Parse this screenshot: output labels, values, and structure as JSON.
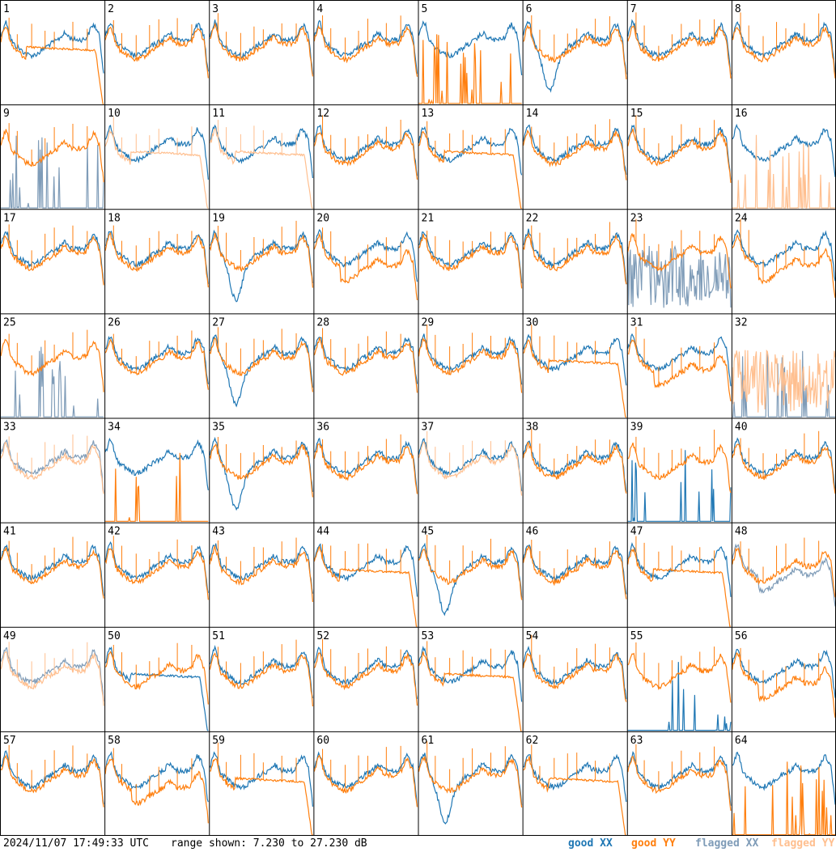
{
  "footer": {
    "timestamp": "2024/11/07 17:49:33 UTC",
    "range_text": "range shown: 7.230 to 27.230 dB"
  },
  "legend": {
    "good_xx": "good XX",
    "good_yy": "good YY",
    "flagged_xx": "flagged XX",
    "flagged_yy": "flagged YY"
  },
  "colors": {
    "good_xx": "#1f77b4",
    "good_yy": "#ff7f0e",
    "flagged_xx": "#7f9cb8",
    "flagged_yy": "#ffbf8f",
    "grid": "#000000"
  },
  "chart_data": {
    "type": "line",
    "layout": "8x8 small multiples of spectra",
    "ylim": [
      7.23,
      27.23
    ],
    "y_unit": "dB",
    "panels": [
      {
        "id": "1",
        "xx": "good",
        "yy": "good",
        "yy_shape": "drop-right"
      },
      {
        "id": "2",
        "xx": "good",
        "yy": "good"
      },
      {
        "id": "3",
        "xx": "good",
        "yy": "good"
      },
      {
        "id": "4",
        "xx": "good",
        "yy": "good"
      },
      {
        "id": "5",
        "xx": "good",
        "yy": "good",
        "yy_shape": "spikes-low"
      },
      {
        "id": "6",
        "xx": "good",
        "yy": "good",
        "xx_shape": "dip"
      },
      {
        "id": "7",
        "xx": "good",
        "yy": "good"
      },
      {
        "id": "8",
        "xx": "good",
        "yy": "good"
      },
      {
        "id": "9",
        "xx": "flagged",
        "yy": "good",
        "xx_shape": "spikes-low"
      },
      {
        "id": "10",
        "xx": "good",
        "yy": "flagged",
        "yy_shape": "drop-right"
      },
      {
        "id": "11",
        "xx": "good",
        "yy": "flagged",
        "yy_shape": "drop-right"
      },
      {
        "id": "12",
        "xx": "good",
        "yy": "good"
      },
      {
        "id": "13",
        "xx": "good",
        "yy": "good",
        "yy_shape": "drop-right"
      },
      {
        "id": "14",
        "xx": "good",
        "yy": "good"
      },
      {
        "id": "15",
        "xx": "good",
        "yy": "good"
      },
      {
        "id": "16",
        "xx": "good",
        "yy": "flagged",
        "yy_shape": "spikes-low"
      },
      {
        "id": "17",
        "xx": "good",
        "yy": "good"
      },
      {
        "id": "18",
        "xx": "good",
        "yy": "good"
      },
      {
        "id": "19",
        "xx": "good",
        "yy": "good",
        "xx_shape": "dip"
      },
      {
        "id": "20",
        "xx": "good",
        "yy": "good",
        "yy_shape": "low"
      },
      {
        "id": "21",
        "xx": "good",
        "yy": "good"
      },
      {
        "id": "22",
        "xx": "good",
        "yy": "good"
      },
      {
        "id": "23",
        "xx": "flagged",
        "yy": "good",
        "xx_shape": "noisy"
      },
      {
        "id": "24",
        "xx": "good",
        "yy": "good",
        "yy_shape": "low"
      },
      {
        "id": "25",
        "xx": "flagged",
        "yy": "good",
        "xx_shape": "spikes-low"
      },
      {
        "id": "26",
        "xx": "good",
        "yy": "good"
      },
      {
        "id": "27",
        "xx": "good",
        "yy": "good",
        "xx_shape": "dip"
      },
      {
        "id": "28",
        "xx": "good",
        "yy": "good"
      },
      {
        "id": "29",
        "xx": "good",
        "yy": "good"
      },
      {
        "id": "30",
        "xx": "good",
        "yy": "good",
        "yy_shape": "drop-right"
      },
      {
        "id": "31",
        "xx": "good",
        "yy": "good",
        "yy_shape": "low"
      },
      {
        "id": "32",
        "xx": "flagged",
        "yy": "flagged",
        "xx_shape": "spikes-low",
        "yy_shape": "noisy"
      },
      {
        "id": "33",
        "xx": "flagged",
        "yy": "flagged"
      },
      {
        "id": "34",
        "xx": "good",
        "yy": "good",
        "yy_shape": "spikes-low"
      },
      {
        "id": "35",
        "xx": "good",
        "yy": "good",
        "xx_shape": "dip"
      },
      {
        "id": "36",
        "xx": "good",
        "yy": "good"
      },
      {
        "id": "37",
        "xx": "good",
        "yy": "flagged"
      },
      {
        "id": "38",
        "xx": "good",
        "yy": "good"
      },
      {
        "id": "39",
        "xx": "good",
        "yy": "good",
        "xx_shape": "spikes-low"
      },
      {
        "id": "40",
        "xx": "good",
        "yy": "good"
      },
      {
        "id": "41",
        "xx": "good",
        "yy": "good"
      },
      {
        "id": "42",
        "xx": "good",
        "yy": "good"
      },
      {
        "id": "43",
        "xx": "good",
        "yy": "good"
      },
      {
        "id": "44",
        "xx": "good",
        "yy": "good",
        "yy_shape": "drop-right"
      },
      {
        "id": "45",
        "xx": "good",
        "yy": "good",
        "xx_shape": "dip"
      },
      {
        "id": "46",
        "xx": "good",
        "yy": "good"
      },
      {
        "id": "47",
        "xx": "good",
        "yy": "good",
        "yy_shape": "drop-right"
      },
      {
        "id": "48",
        "xx": "flagged",
        "yy": "good",
        "xx_shape": "low"
      },
      {
        "id": "49",
        "xx": "flagged",
        "yy": "flagged"
      },
      {
        "id": "50",
        "xx": "good",
        "yy": "good",
        "xx_shape": "drop-right"
      },
      {
        "id": "51",
        "xx": "good",
        "yy": "good"
      },
      {
        "id": "52",
        "xx": "good",
        "yy": "good"
      },
      {
        "id": "53",
        "xx": "good",
        "yy": "good",
        "yy_shape": "drop-right"
      },
      {
        "id": "54",
        "xx": "good",
        "yy": "good"
      },
      {
        "id": "55",
        "xx": "good",
        "yy": "good",
        "xx_shape": "spikes-low"
      },
      {
        "id": "56",
        "xx": "good",
        "yy": "good",
        "yy_shape": "low"
      },
      {
        "id": "57",
        "xx": "good",
        "yy": "good"
      },
      {
        "id": "58",
        "xx": "good",
        "yy": "good",
        "yy_shape": "low"
      },
      {
        "id": "59",
        "xx": "good",
        "yy": "good",
        "yy_shape": "drop-right"
      },
      {
        "id": "60",
        "xx": "good",
        "yy": "good"
      },
      {
        "id": "61",
        "xx": "good",
        "yy": "good",
        "xx_shape": "dip"
      },
      {
        "id": "62",
        "xx": "good",
        "yy": "good",
        "yy_shape": "drop-right"
      },
      {
        "id": "63",
        "xx": "good",
        "yy": "good"
      },
      {
        "id": "64",
        "xx": "good",
        "yy": "good",
        "yy_shape": "spikes-low"
      }
    ]
  }
}
